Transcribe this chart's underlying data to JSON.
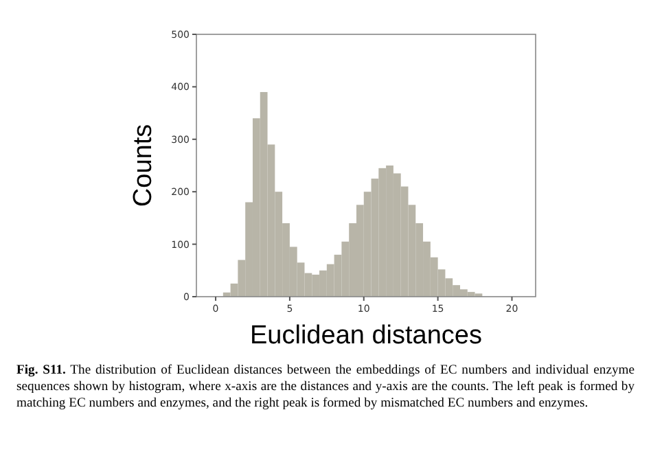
{
  "chart_data": {
    "type": "histogram",
    "xlabel": "Euclidean distances",
    "ylabel": "Counts",
    "bins": [
      0.5,
      1,
      1.5,
      2,
      2.5,
      3,
      3.5,
      4,
      4.5,
      5,
      5.5,
      6,
      6.5,
      7,
      7.5,
      8,
      8.5,
      9,
      9.5,
      10,
      10.5,
      11,
      11.5,
      12,
      12.5,
      13,
      13.5,
      14,
      14.5,
      15,
      15.5,
      16,
      16.5,
      17,
      17.5,
      18
    ],
    "values": [
      8,
      25,
      70,
      180,
      340,
      390,
      290,
      200,
      140,
      95,
      65,
      45,
      42,
      50,
      62,
      80,
      105,
      140,
      175,
      200,
      225,
      245,
      250,
      235,
      210,
      175,
      140,
      105,
      75,
      52,
      35,
      22,
      14,
      9,
      6
    ],
    "color": "#b8b5a8",
    "xlim": [
      -1.3,
      21.6
    ],
    "ylim": [
      0,
      500
    ],
    "xticks": [
      0,
      5,
      10,
      15,
      20
    ],
    "yticks": [
      0,
      100,
      200,
      300,
      400,
      500
    ],
    "grid": false,
    "annotations": [
      "Fig. S11. The distribution of Euclidean distances between the embeddings of EC numbers and individual enzyme sequences shown by histogram, where x-axis are the distances and y-axis are the counts. The left peak is formed by matching EC numbers and enzymes, and the right peak is formed by mismatched EC numbers and enzymes."
    ]
  }
}
